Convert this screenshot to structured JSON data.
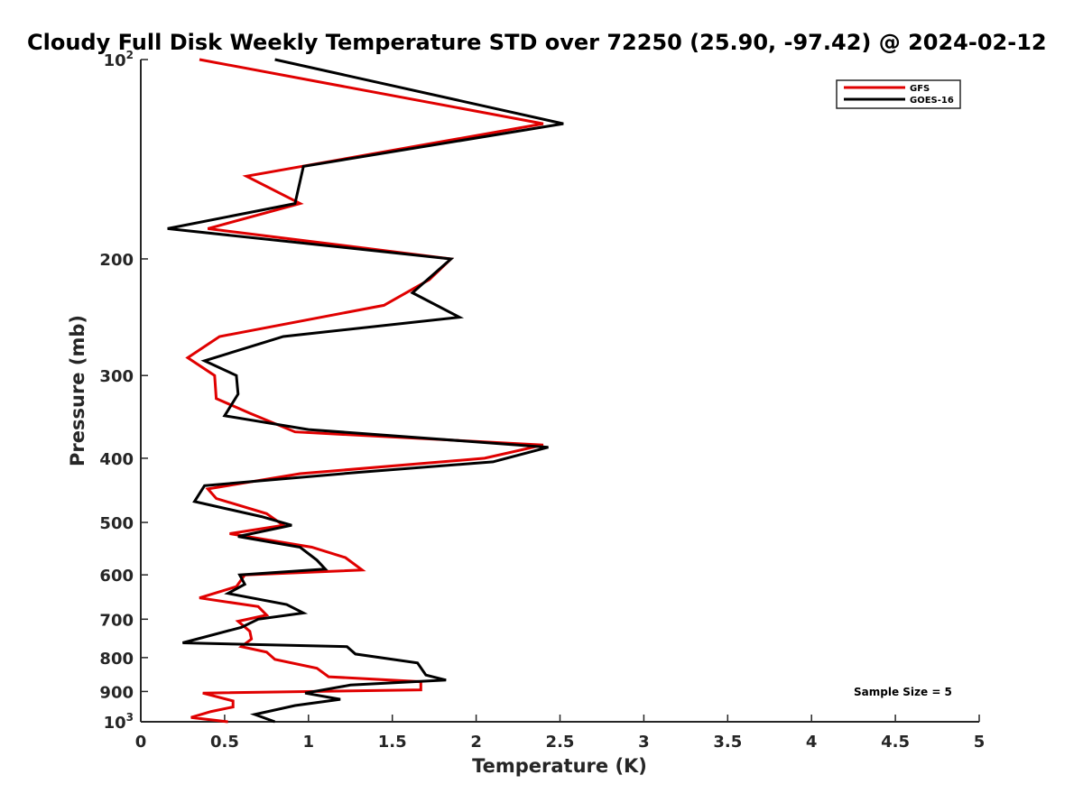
{
  "chart_data": {
    "type": "line",
    "title": "Cloudy Full Disk Weekly Temperature STD over 72250 (25.90, -97.42) @ 2024-02-12",
    "xlabel": "Temperature (K)",
    "ylabel": "Pressure (mb)",
    "xlim": [
      0,
      5
    ],
    "ylim": [
      100,
      1000
    ],
    "y_scale": "log",
    "y_reversed": true,
    "x_ticks": [
      0,
      0.5,
      1,
      1.5,
      2,
      2.5,
      3,
      3.5,
      4,
      4.5,
      5
    ],
    "x_tick_labels": [
      "0",
      "0.5",
      "1",
      "1.5",
      "2",
      "2.5",
      "3",
      "3.5",
      "4",
      "4.5",
      "5"
    ],
    "y_ticks": [
      {
        "value": 100,
        "label": "10",
        "sup": "2"
      },
      {
        "value": 200,
        "label": "200",
        "sup": ""
      },
      {
        "value": 300,
        "label": "300",
        "sup": ""
      },
      {
        "value": 400,
        "label": "400",
        "sup": ""
      },
      {
        "value": 500,
        "label": "500",
        "sup": ""
      },
      {
        "value": 600,
        "label": "600",
        "sup": ""
      },
      {
        "value": 700,
        "label": "700",
        "sup": ""
      },
      {
        "value": 800,
        "label": "800",
        "sup": ""
      },
      {
        "value": 900,
        "label": "900",
        "sup": ""
      },
      {
        "value": 1000,
        "label": "10",
        "sup": "3"
      }
    ],
    "legend_position": "top-right",
    "grid": false,
    "annotation": "Sample Size = 5",
    "series": [
      {
        "name": "GFS",
        "color": "#e00000",
        "points": [
          [
            0.35,
            100
          ],
          [
            2.4,
            125
          ],
          [
            0.63,
            150
          ],
          [
            0.95,
            165
          ],
          [
            0.4,
            180
          ],
          [
            1.85,
            200
          ],
          [
            1.72,
            215
          ],
          [
            1.45,
            235
          ],
          [
            0.47,
            262
          ],
          [
            0.28,
            282
          ],
          [
            0.44,
            300
          ],
          [
            0.45,
            325
          ],
          [
            0.65,
            342
          ],
          [
            0.92,
            365
          ],
          [
            2.4,
            382
          ],
          [
            2.05,
            400
          ],
          [
            0.95,
            422
          ],
          [
            0.4,
            445
          ],
          [
            0.45,
            460
          ],
          [
            0.75,
            485
          ],
          [
            0.85,
            505
          ],
          [
            0.53,
            520
          ],
          [
            1.02,
            545
          ],
          [
            1.22,
            565
          ],
          [
            1.32,
            590
          ],
          [
            0.62,
            600
          ],
          [
            0.57,
            625
          ],
          [
            0.35,
            650
          ],
          [
            0.7,
            670
          ],
          [
            0.75,
            690
          ],
          [
            0.58,
            705
          ],
          [
            0.65,
            730
          ],
          [
            0.66,
            750
          ],
          [
            0.6,
            770
          ],
          [
            0.75,
            785
          ],
          [
            0.8,
            805
          ],
          [
            1.05,
            830
          ],
          [
            1.12,
            855
          ],
          [
            1.67,
            870
          ],
          [
            1.67,
            895
          ],
          [
            0.37,
            905
          ],
          [
            0.55,
            930
          ],
          [
            0.55,
            950
          ],
          [
            0.42,
            965
          ],
          [
            0.3,
            985
          ],
          [
            0.52,
            1000
          ]
        ]
      },
      {
        "name": "GOES-16",
        "color": "#000000",
        "points": [
          [
            0.8,
            100
          ],
          [
            2.52,
            125
          ],
          [
            0.97,
            145
          ],
          [
            0.92,
            165
          ],
          [
            0.16,
            180
          ],
          [
            1.85,
            200
          ],
          [
            1.62,
            225
          ],
          [
            1.9,
            245
          ],
          [
            0.85,
            262
          ],
          [
            0.38,
            285
          ],
          [
            0.57,
            300
          ],
          [
            0.58,
            320
          ],
          [
            0.5,
            345
          ],
          [
            1.0,
            362
          ],
          [
            2.43,
            385
          ],
          [
            2.1,
            405
          ],
          [
            1.3,
            420
          ],
          [
            0.38,
            440
          ],
          [
            0.32,
            465
          ],
          [
            0.72,
            490
          ],
          [
            0.9,
            505
          ],
          [
            0.58,
            525
          ],
          [
            0.95,
            545
          ],
          [
            1.05,
            570
          ],
          [
            1.1,
            588
          ],
          [
            0.59,
            600
          ],
          [
            0.62,
            620
          ],
          [
            0.52,
            640
          ],
          [
            0.87,
            665
          ],
          [
            0.97,
            685
          ],
          [
            0.7,
            700
          ],
          [
            0.6,
            720
          ],
          [
            0.25,
            760
          ],
          [
            1.23,
            770
          ],
          [
            1.28,
            790
          ],
          [
            1.65,
            815
          ],
          [
            1.7,
            850
          ],
          [
            1.82,
            865
          ],
          [
            1.25,
            880
          ],
          [
            0.98,
            905
          ],
          [
            1.19,
            925
          ],
          [
            0.92,
            945
          ],
          [
            0.68,
            975
          ],
          [
            0.8,
            1000
          ]
        ]
      }
    ]
  }
}
